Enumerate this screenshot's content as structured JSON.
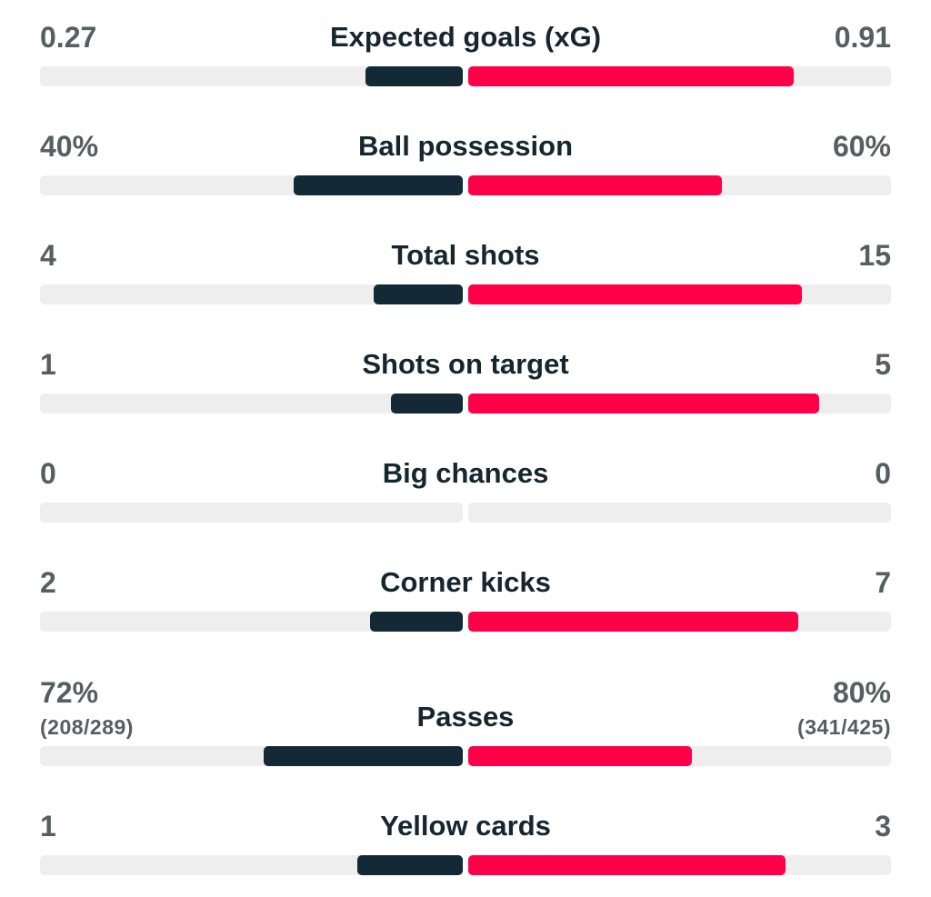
{
  "colors": {
    "home": "#132a36",
    "away": "#ff0048",
    "track": "#eeeeee",
    "label": "#15262f",
    "value": "#555e63"
  },
  "stats": [
    {
      "label": "Expected goals (xG)",
      "home": "0.27",
      "away": "0.91",
      "home_fill": 0.23,
      "away_fill": 0.77
    },
    {
      "label": "Ball possession",
      "home": "40%",
      "away": "60%",
      "home_fill": 0.4,
      "away_fill": 0.6
    },
    {
      "label": "Total shots",
      "home": "4",
      "away": "15",
      "home_fill": 0.21,
      "away_fill": 0.79
    },
    {
      "label": "Shots on target",
      "home": "1",
      "away": "5",
      "home_fill": 0.17,
      "away_fill": 0.83
    },
    {
      "label": "Big chances",
      "home": "0",
      "away": "0",
      "home_fill": 0,
      "away_fill": 0
    },
    {
      "label": "Corner kicks",
      "home": "2",
      "away": "7",
      "home_fill": 0.22,
      "away_fill": 0.78
    },
    {
      "label": "Passes",
      "home": "72%",
      "away": "80%",
      "home_sub": "(208/289)",
      "away_sub": "(341/425)",
      "home_fill": 0.47,
      "away_fill": 0.53
    },
    {
      "label": "Yellow cards",
      "home": "1",
      "away": "3",
      "home_fill": 0.25,
      "away_fill": 0.75
    }
  ]
}
